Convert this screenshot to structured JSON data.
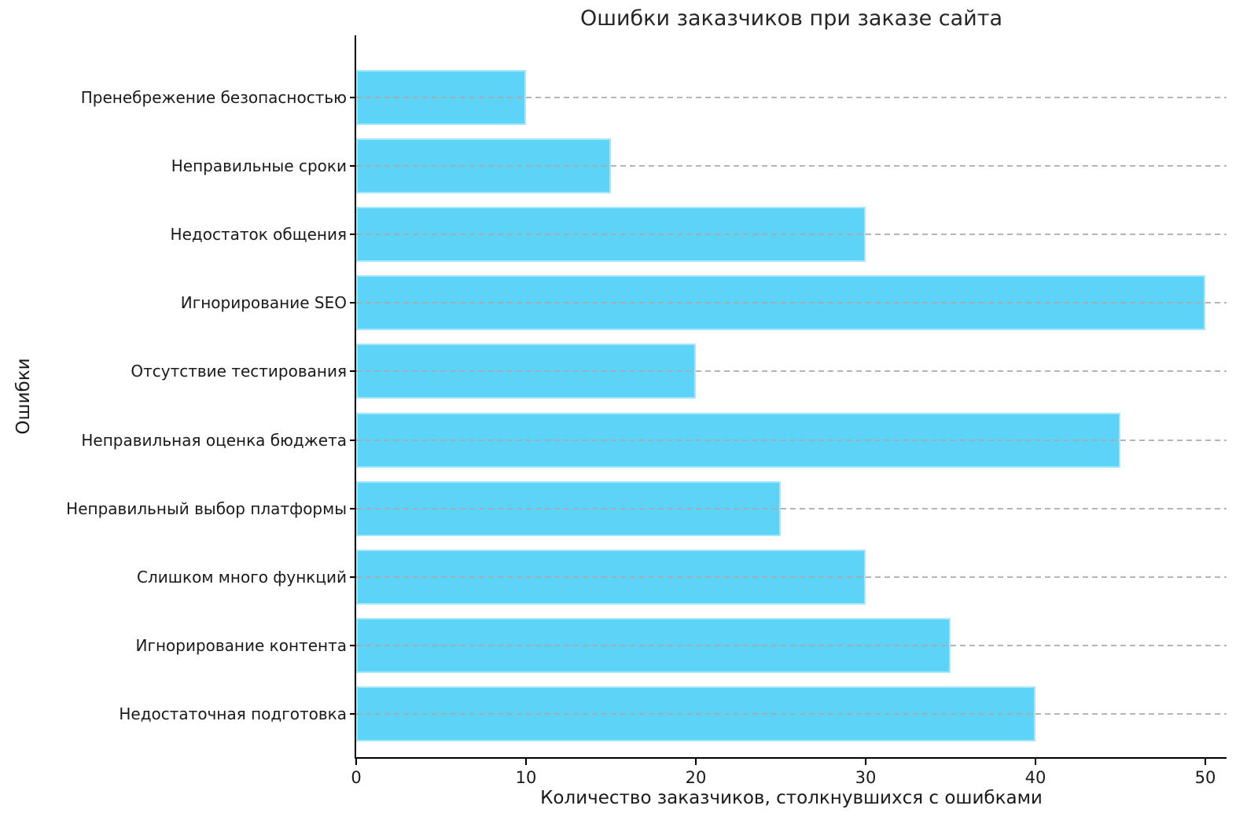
{
  "chart_data": {
    "type": "bar",
    "orientation": "horizontal",
    "title": "Ошибки заказчиков при заказе сайта",
    "xlabel": "Количество заказчиков, столкнувшихся с ошибками",
    "ylabel": "Ошибки",
    "categories": [
      "Пренебрежение безопасностью",
      "Неправильные сроки",
      "Недостаток общения",
      "Игнорирование SEO",
      "Отсутствие тестирования",
      "Неправильная оценка бюджета",
      "Неправильный выбор платформы",
      "Слишком много функций",
      "Игнорирование контента",
      "Недостаточная подготовка"
    ],
    "values": [
      10,
      15,
      30,
      50,
      20,
      45,
      25,
      30,
      35,
      40
    ],
    "xticks": [
      0,
      10,
      20,
      30,
      40,
      50
    ],
    "xlim": [
      0,
      51.25
    ],
    "bar_color": "#5CD3F7",
    "grid": "horizontal-dashed",
    "grid_color": "#A8A8A8",
    "legend": "none"
  }
}
